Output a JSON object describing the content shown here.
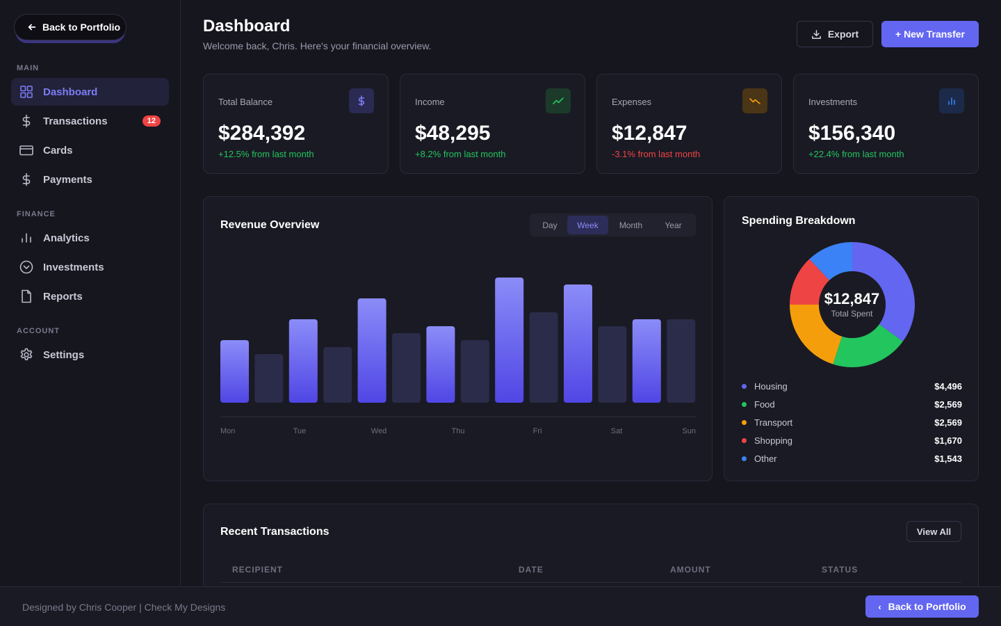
{
  "sidebar": {
    "back_label": "Back to Portfolio",
    "sections": [
      "MAIN",
      "FINANCE",
      "ACCOUNT"
    ],
    "items": [
      {
        "label": "Dashboard",
        "icon": "grid-icon",
        "active": true
      },
      {
        "label": "Transactions",
        "icon": "dollar-icon",
        "badge": "12"
      },
      {
        "label": "Cards",
        "icon": "card-icon"
      },
      {
        "label": "Payments",
        "icon": "dollar-icon"
      },
      {
        "label": "Analytics",
        "icon": "bar-chart-icon"
      },
      {
        "label": "Investments",
        "icon": "clock-icon"
      },
      {
        "label": "Reports",
        "icon": "file-icon"
      },
      {
        "label": "Settings",
        "icon": "gear-icon"
      }
    ]
  },
  "header": {
    "title": "Dashboard",
    "subtitle": "Welcome back, Chris. Here's your financial overview.",
    "export_label": "Export",
    "new_transfer_label": "+ New Transfer"
  },
  "stats": [
    {
      "label": "Total Balance",
      "value": "$284,392",
      "delta": "+12.5% from last month",
      "trend": "up",
      "icon": "dollar-icon",
      "color": "#6366f1"
    },
    {
      "label": "Income",
      "value": "$48,295",
      "delta": "+8.2% from last month",
      "trend": "up",
      "icon": "trend-up-icon",
      "color": "#22c55e"
    },
    {
      "label": "Expenses",
      "value": "$12,847",
      "delta": "-3.1% from last month",
      "trend": "down",
      "icon": "trend-down-icon",
      "color": "#f59e0b"
    },
    {
      "label": "Investments",
      "value": "$156,340",
      "delta": "+22.4% from last month",
      "trend": "up",
      "icon": "bar-chart-icon",
      "color": "#3b82f6"
    }
  ],
  "revenue": {
    "title": "Revenue Overview",
    "ranges": [
      "Day",
      "Week",
      "Month",
      "Year"
    ],
    "active_range": "Week"
  },
  "chart_data": {
    "type": "bar",
    "categories": [
      "Mon",
      "Tue",
      "Wed",
      "Thu",
      "Fri",
      "Sat",
      "Sun"
    ],
    "series": [
      {
        "values": [
          45,
          60,
          75,
          55,
          90,
          85,
          60
        ],
        "color": "#6f6ff6"
      },
      {
        "values": [
          35,
          40,
          50,
          45,
          65,
          55,
          60
        ],
        "color": "#2b2b4a"
      }
    ],
    "ylim": [
      0,
      100
    ]
  },
  "spending": {
    "title": "Spending Breakdown",
    "total": "$12,847",
    "total_label": "Total Spent",
    "categories": [
      {
        "name": "Housing",
        "amount": "$4,496",
        "value": 4496,
        "color": "#6366f1"
      },
      {
        "name": "Food",
        "amount": "$2,569",
        "value": 2569,
        "color": "#22c55e"
      },
      {
        "name": "Transport",
        "amount": "$2,569",
        "value": 2569,
        "color": "#f59e0b"
      },
      {
        "name": "Shopping",
        "amount": "$1,670",
        "value": 1670,
        "color": "#ef4444"
      },
      {
        "name": "Other",
        "amount": "$1,543",
        "value": 1543,
        "color": "#3b82f6"
      }
    ]
  },
  "transactions": {
    "title": "Recent Transactions",
    "view_all_label": "View All",
    "columns": [
      "RECIPIENT",
      "DATE",
      "AMOUNT",
      "STATUS"
    ]
  },
  "footer": {
    "credit": "Designed by Chris Cooper | Check My Designs",
    "back_label": "Back to Portfolio"
  }
}
